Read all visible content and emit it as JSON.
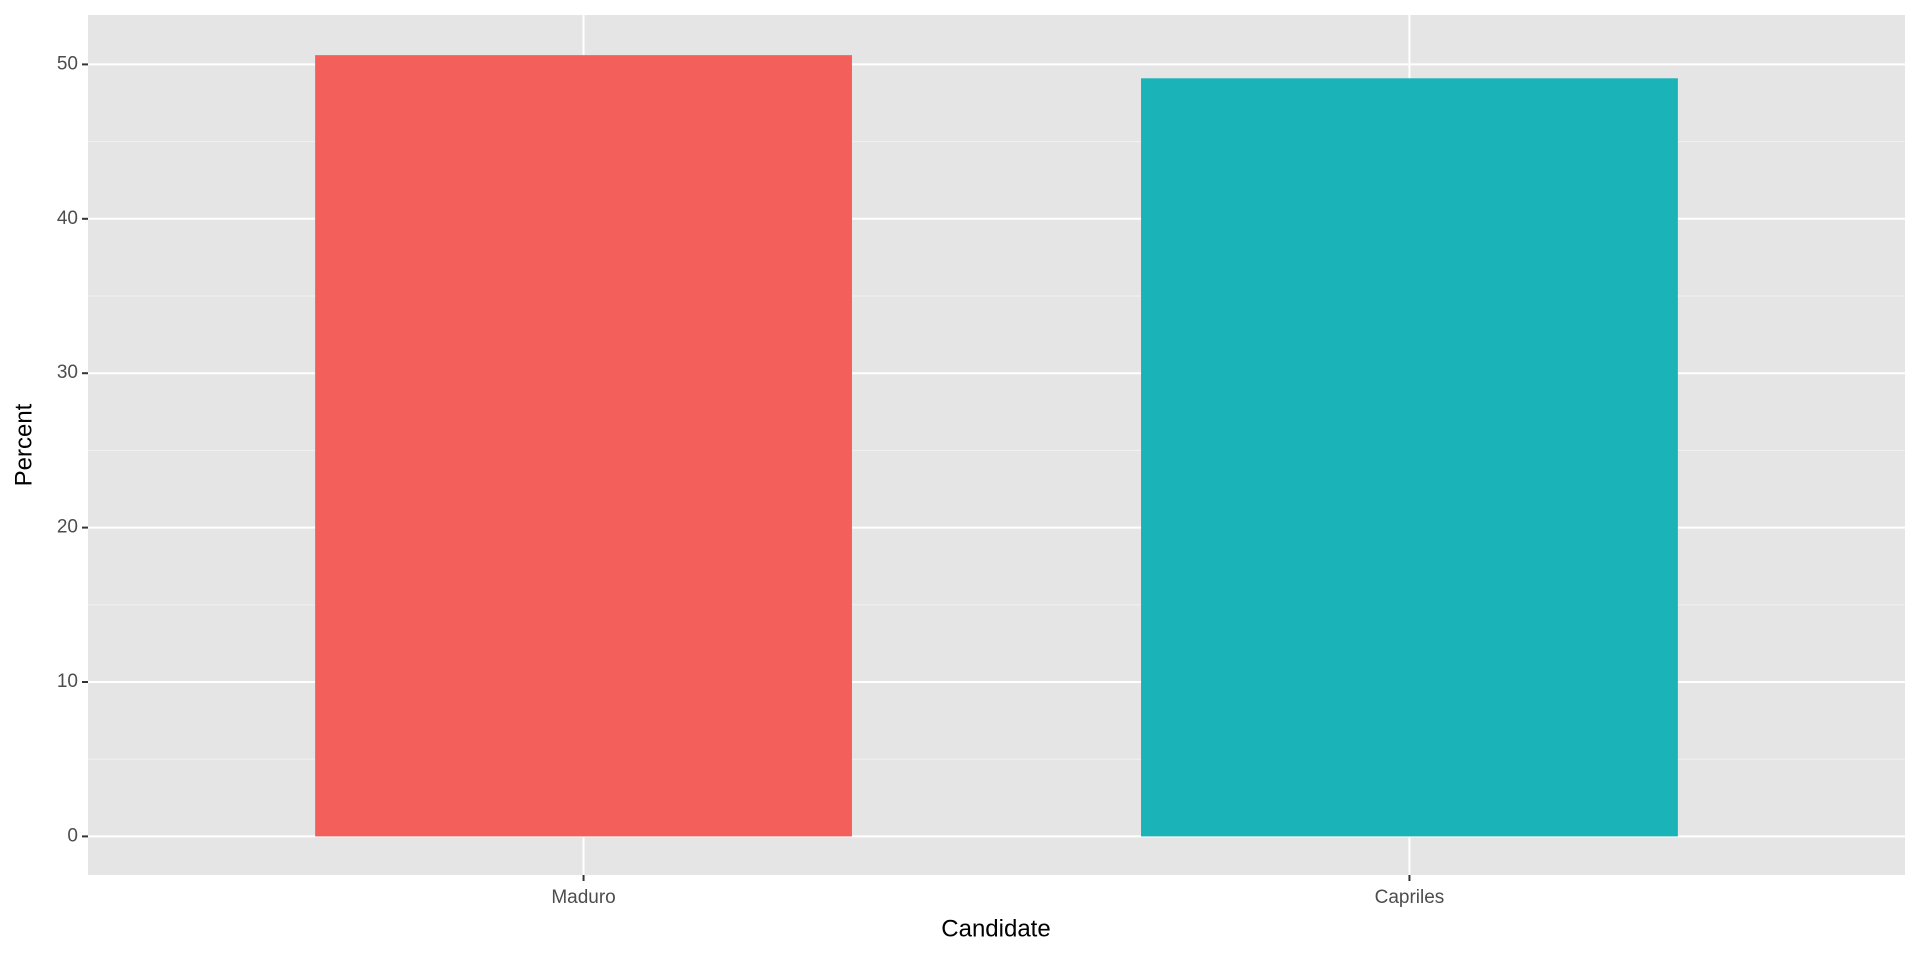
{
  "chart_data": {
    "type": "bar",
    "x_label": "Candidate",
    "y_label": "Percent",
    "categories": [
      "Maduro",
      "Capriles"
    ],
    "values": [
      50.6,
      49.1
    ],
    "colors": [
      "#f35f5b",
      "#19b3b8"
    ],
    "ylim": [
      -2.5,
      53.2
    ],
    "yticks": [
      0,
      10,
      20,
      30,
      40,
      50
    ],
    "grid": true,
    "minor_grid": true
  }
}
